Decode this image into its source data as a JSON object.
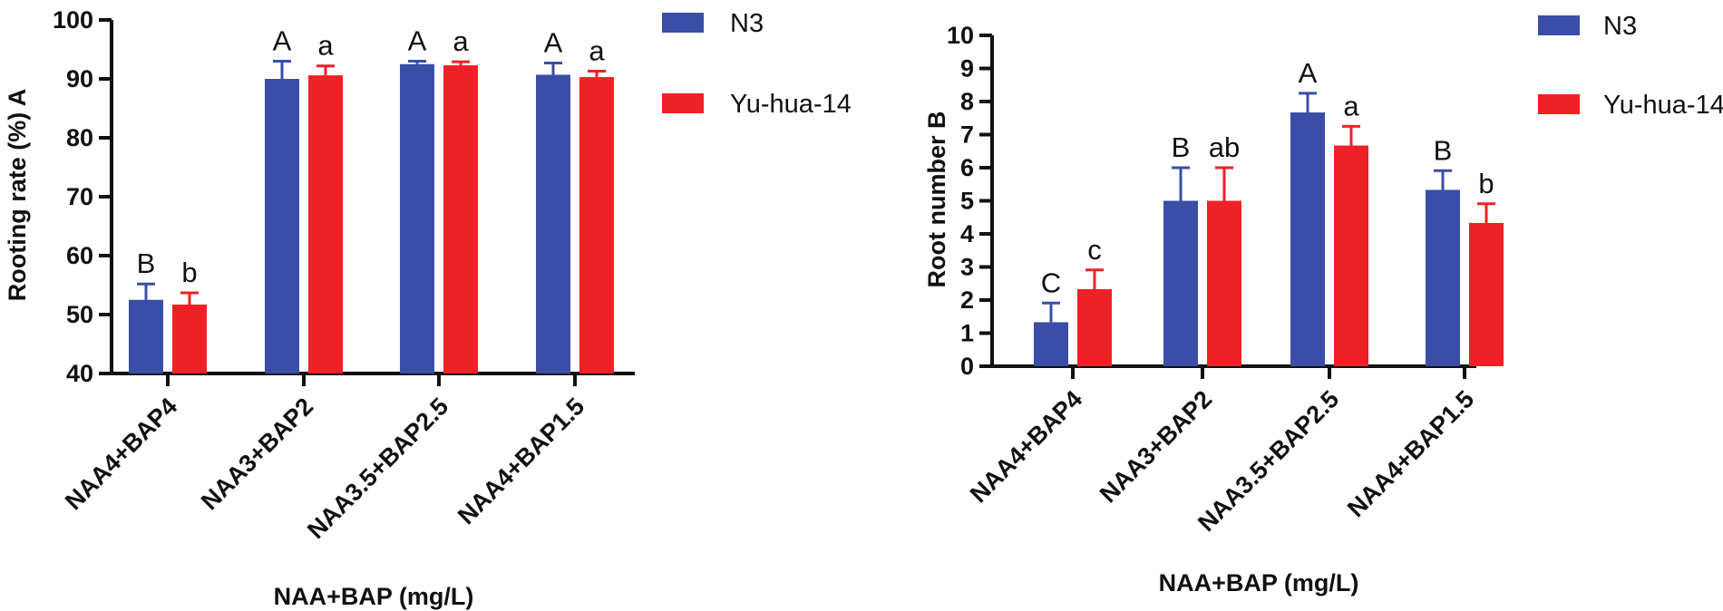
{
  "colors": {
    "n3": "#3a4ea8",
    "yuhua": "#ee2126",
    "axis": "#111111"
  },
  "chart_data": [
    {
      "type": "bar",
      "panel": "A",
      "ylabel": "Rooting rate (%) A",
      "xlabel": "NAA+BAP (mg/L)",
      "ylim": [
        40,
        100
      ],
      "yticks": [
        40,
        50,
        60,
        70,
        80,
        90,
        100
      ],
      "ytick_labels": [
        "40",
        "50",
        "60",
        "70",
        "80",
        "90",
        "100"
      ],
      "categories": [
        "NAA4+BAP4",
        "NAA3+BAP2",
        "NAA3.5+BAP2.5",
        "NAA4+BAP1.5"
      ],
      "legend": [
        "N3",
        "Yu-hua-14"
      ],
      "series": [
        {
          "name": "N3",
          "values": [
            52.5,
            90,
            92.5,
            90.7
          ],
          "errors": [
            2.7,
            3.0,
            0.5,
            2.0
          ],
          "labels": [
            "B",
            "A",
            "A",
            "A"
          ]
        },
        {
          "name": "Yu-hua-14",
          "values": [
            51.7,
            90.6,
            92.3,
            90.3
          ],
          "errors": [
            2.0,
            1.6,
            0.6,
            1.0
          ],
          "labels": [
            "b",
            "a",
            "a",
            "a"
          ]
        }
      ]
    },
    {
      "type": "bar",
      "panel": "B",
      "ylabel": "Root number B",
      "xlabel": "NAA+BAP (mg/L)",
      "ylim": [
        0,
        10
      ],
      "yticks": [
        0,
        1,
        2,
        3,
        4,
        5,
        6,
        7,
        8,
        9,
        10
      ],
      "ytick_labels": [
        "0",
        "1",
        "2",
        "3",
        "4",
        "5",
        "6",
        "7",
        "8",
        "9",
        "10"
      ],
      "categories": [
        "NAA4+BAP4",
        "NAA3+BAP2",
        "NAA3.5+BAP2.5",
        "NAA4+BAP1.5"
      ],
      "legend": [
        "N3",
        "Yu-hua-14"
      ],
      "series": [
        {
          "name": "N3",
          "values": [
            1.33,
            5.0,
            7.67,
            5.33
          ],
          "errors": [
            0.58,
            1.0,
            0.58,
            0.58
          ],
          "labels": [
            "C",
            "B",
            "A",
            "B"
          ]
        },
        {
          "name": "Yu-hua-14",
          "values": [
            2.33,
            5.0,
            6.67,
            4.33
          ],
          "errors": [
            0.58,
            1.0,
            0.58,
            0.58
          ],
          "labels": [
            "c",
            "ab",
            "a",
            "b"
          ]
        }
      ]
    }
  ]
}
